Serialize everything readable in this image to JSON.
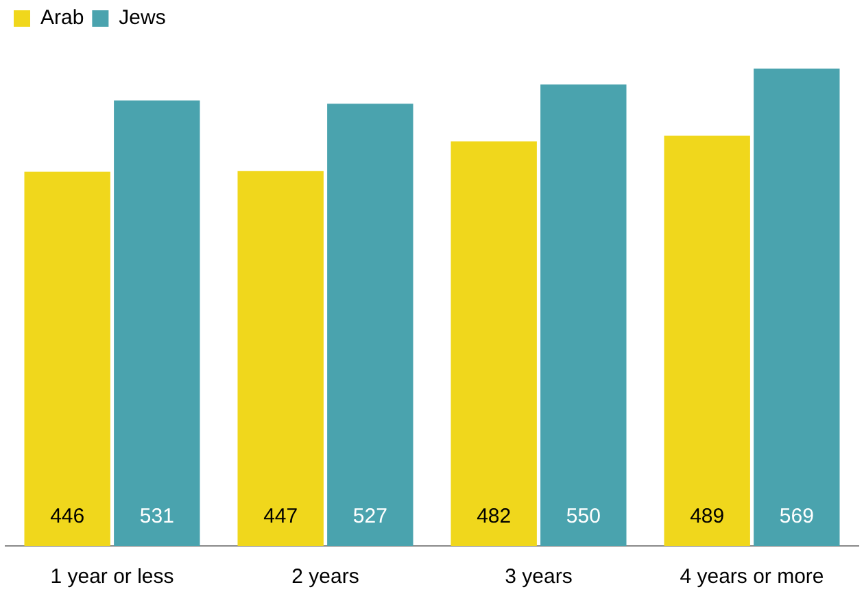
{
  "chart_data": {
    "type": "bar",
    "categories": [
      "1 year or less",
      "2 years",
      "3 years",
      "4 years or more"
    ],
    "series": [
      {
        "name": "Arab",
        "color": "#f0d71c",
        "values": [
          446,
          447,
          482,
          489
        ]
      },
      {
        "name": "Jews",
        "color": "#4aa3ae",
        "values": [
          531,
          527,
          550,
          569
        ]
      }
    ],
    "data_labels": true,
    "legend": "top left",
    "grid": false
  }
}
